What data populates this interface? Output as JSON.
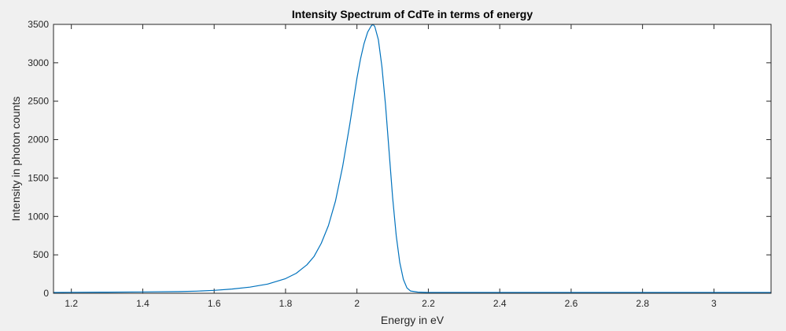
{
  "colors": {
    "figure_background": "#f0f0f0",
    "axes_background": "#ffffff",
    "axis_color": "#262626",
    "line_color": "#0072bd"
  },
  "chart_data": {
    "type": "line",
    "title": "Intensity Spectrum of CdTe in terms of energy",
    "xlabel": "Energy in eV",
    "ylabel": "Intensity in photon counts",
    "xlim": [
      1.15,
      3.16
    ],
    "ylim": [
      0,
      3500
    ],
    "xticks": [
      1.2,
      1.4,
      1.6,
      1.8,
      2,
      2.2,
      2.4,
      2.6,
      2.8,
      3
    ],
    "xtick_labels": [
      "1.2",
      "1.4",
      "1.6",
      "1.8",
      "2",
      "2.2",
      "2.4",
      "2.6",
      "2.8",
      "3"
    ],
    "yticks": [
      0,
      500,
      1000,
      1500,
      2000,
      2500,
      3000,
      3500
    ],
    "ytick_labels": [
      "0",
      "500",
      "1000",
      "1500",
      "2000",
      "2500",
      "3000",
      "3500"
    ],
    "grid": false,
    "legend": "none",
    "series": [
      {
        "x": [
          1.15,
          1.2,
          1.3,
          1.4,
          1.5,
          1.55,
          1.6,
          1.65,
          1.7,
          1.75,
          1.8,
          1.83,
          1.86,
          1.88,
          1.9,
          1.92,
          1.94,
          1.96,
          1.98,
          2.0,
          2.01,
          2.02,
          2.03,
          2.04,
          2.045,
          2.05,
          2.06,
          2.07,
          2.08,
          2.09,
          2.1,
          2.11,
          2.12,
          2.13,
          2.14,
          2.15,
          2.17,
          2.2,
          2.3,
          2.5,
          2.7,
          2.9,
          3.0,
          3.1,
          3.16
        ],
        "y": [
          10,
          12,
          14,
          17,
          22,
          28,
          38,
          55,
          80,
          120,
          190,
          260,
          370,
          480,
          650,
          880,
          1200,
          1650,
          2200,
          2800,
          3050,
          3250,
          3400,
          3480,
          3500,
          3470,
          3300,
          2950,
          2450,
          1850,
          1250,
          750,
          400,
          180,
          70,
          30,
          15,
          10,
          10,
          10,
          10,
          10,
          10,
          10,
          10
        ]
      }
    ]
  }
}
